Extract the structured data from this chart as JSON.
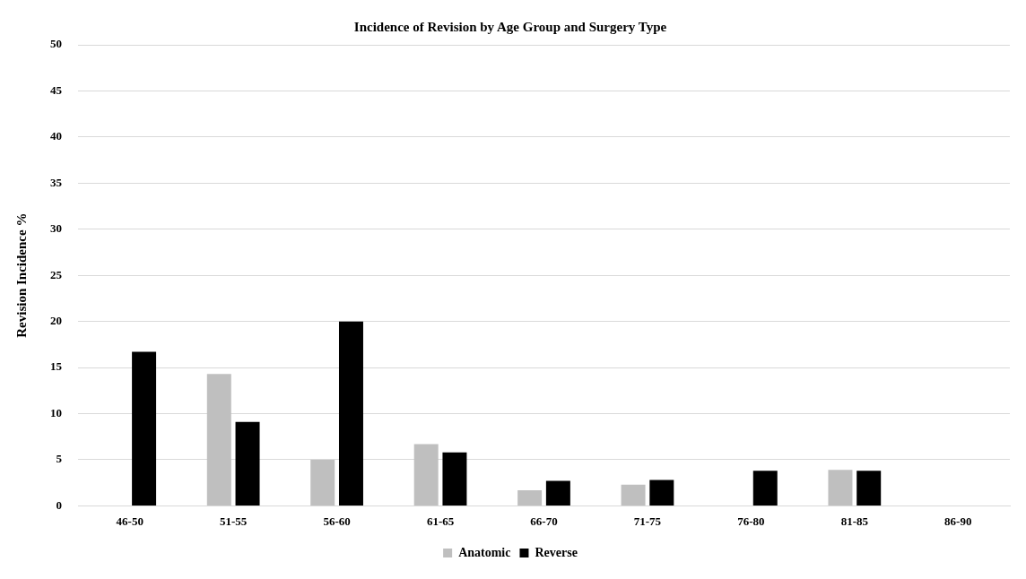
{
  "chart_data": {
    "type": "bar",
    "title": "Incidence of Revision by Age Group and Surgery Type",
    "ylabel": "Revision Incidence %",
    "categories": [
      "46-50",
      "51-55",
      "56-60",
      "61-65",
      "66-70",
      "71-75",
      "76-80",
      "81-85",
      "86-90"
    ],
    "series": [
      {
        "name": "Anatomic",
        "color": "#bfbfbf",
        "values": [
          null,
          14.3,
          5.0,
          6.7,
          1.7,
          2.3,
          null,
          3.9,
          null
        ]
      },
      {
        "name": "Reverse",
        "color": "#000000",
        "values": [
          16.7,
          9.1,
          20.0,
          5.8,
          2.7,
          2.8,
          3.8,
          3.8,
          null
        ]
      }
    ],
    "ylim": [
      0,
      50
    ],
    "yticks": [
      0,
      5,
      10,
      15,
      20,
      25,
      30,
      35,
      40,
      45,
      50
    ],
    "grid": "y",
    "legend": "bottom"
  }
}
